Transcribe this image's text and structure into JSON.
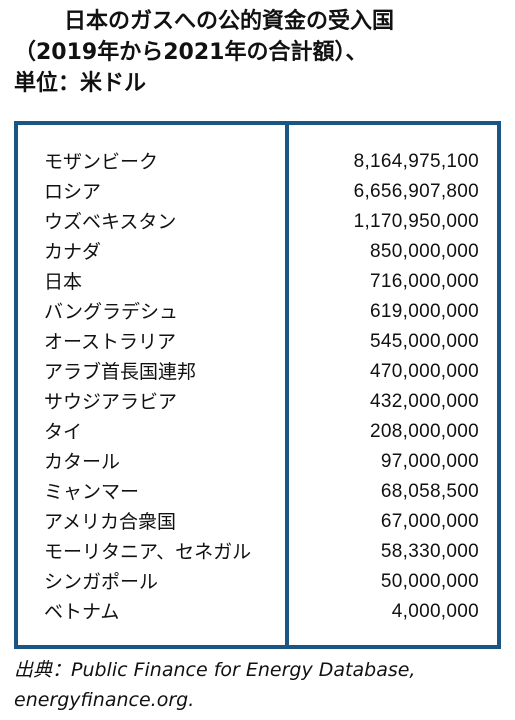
{
  "title": {
    "line1": "日本のガスへの公的資金の受入国",
    "line2": "（2019年から2021年の合計額）、",
    "line3": "単位：米ドル"
  },
  "table": {
    "rows": [
      {
        "country": "モザンビーク",
        "amount": "8,164,975,100"
      },
      {
        "country": "ロシア",
        "amount": "6,656,907,800"
      },
      {
        "country": "ウズベキスタン",
        "amount": "1,170,950,000"
      },
      {
        "country": "カナダ",
        "amount": "850,000,000"
      },
      {
        "country": "日本",
        "amount": "716,000,000"
      },
      {
        "country": "バングラデシュ",
        "amount": "619,000,000"
      },
      {
        "country": "オーストラリア",
        "amount": "545,000,000"
      },
      {
        "country": "アラブ首長国連邦",
        "amount": "470,000,000"
      },
      {
        "country": "サウジアラビア",
        "amount": "432,000,000"
      },
      {
        "country": "タイ",
        "amount": "208,000,000"
      },
      {
        "country": "カタール",
        "amount": "97,000,000"
      },
      {
        "country": "ミャンマー",
        "amount": "68,058,500"
      },
      {
        "country": "アメリカ合衆国",
        "amount": "67,000,000"
      },
      {
        "country": "モーリタニア、セネガル",
        "amount": "58,330,000"
      },
      {
        "country": "シンガポール",
        "amount": "50,000,000"
      },
      {
        "country": "ベトナム",
        "amount": "4,000,000"
      }
    ]
  },
  "source": {
    "line1": "出典：Public Finance for Energy Database,",
    "line2": "energyfinance.org."
  },
  "colors": {
    "border": "#1a5583",
    "text": "#111111"
  }
}
